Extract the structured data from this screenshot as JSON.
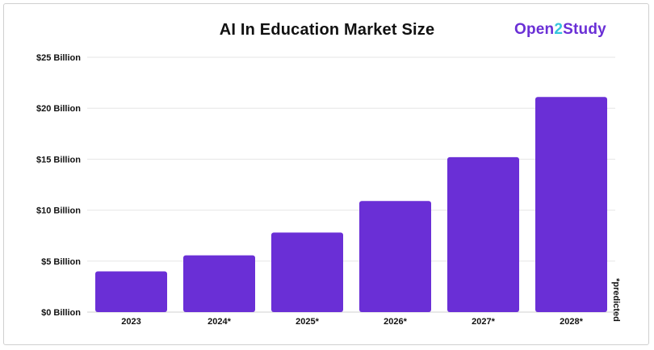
{
  "chart_data": {
    "type": "bar",
    "title": "AI In Education Market Size",
    "categories": [
      "2023",
      "2024*",
      "2025*",
      "2026*",
      "2027*",
      "2028*"
    ],
    "values": [
      4.0,
      5.57,
      7.8,
      10.9,
      15.2,
      21.1
    ],
    "unit": "Billion USD",
    "ylim": [
      0,
      25
    ],
    "yticks": [
      0,
      5,
      10,
      15,
      20,
      25
    ],
    "ytick_labels": [
      "$0 Billion",
      "$5 Billion",
      "$10 Billion",
      "$15 Billion",
      "$20 Billion",
      "$25 Billion"
    ],
    "xlabel": "",
    "ylabel": "",
    "grid": true,
    "bar_color": "#6a2fd6",
    "footnote": "*predicted"
  },
  "brand": {
    "name_part1": "Open",
    "name_part2": "2",
    "name_part3": "Study",
    "primary_color": "#6a2fd6",
    "accent_color": "#35c4dc"
  }
}
